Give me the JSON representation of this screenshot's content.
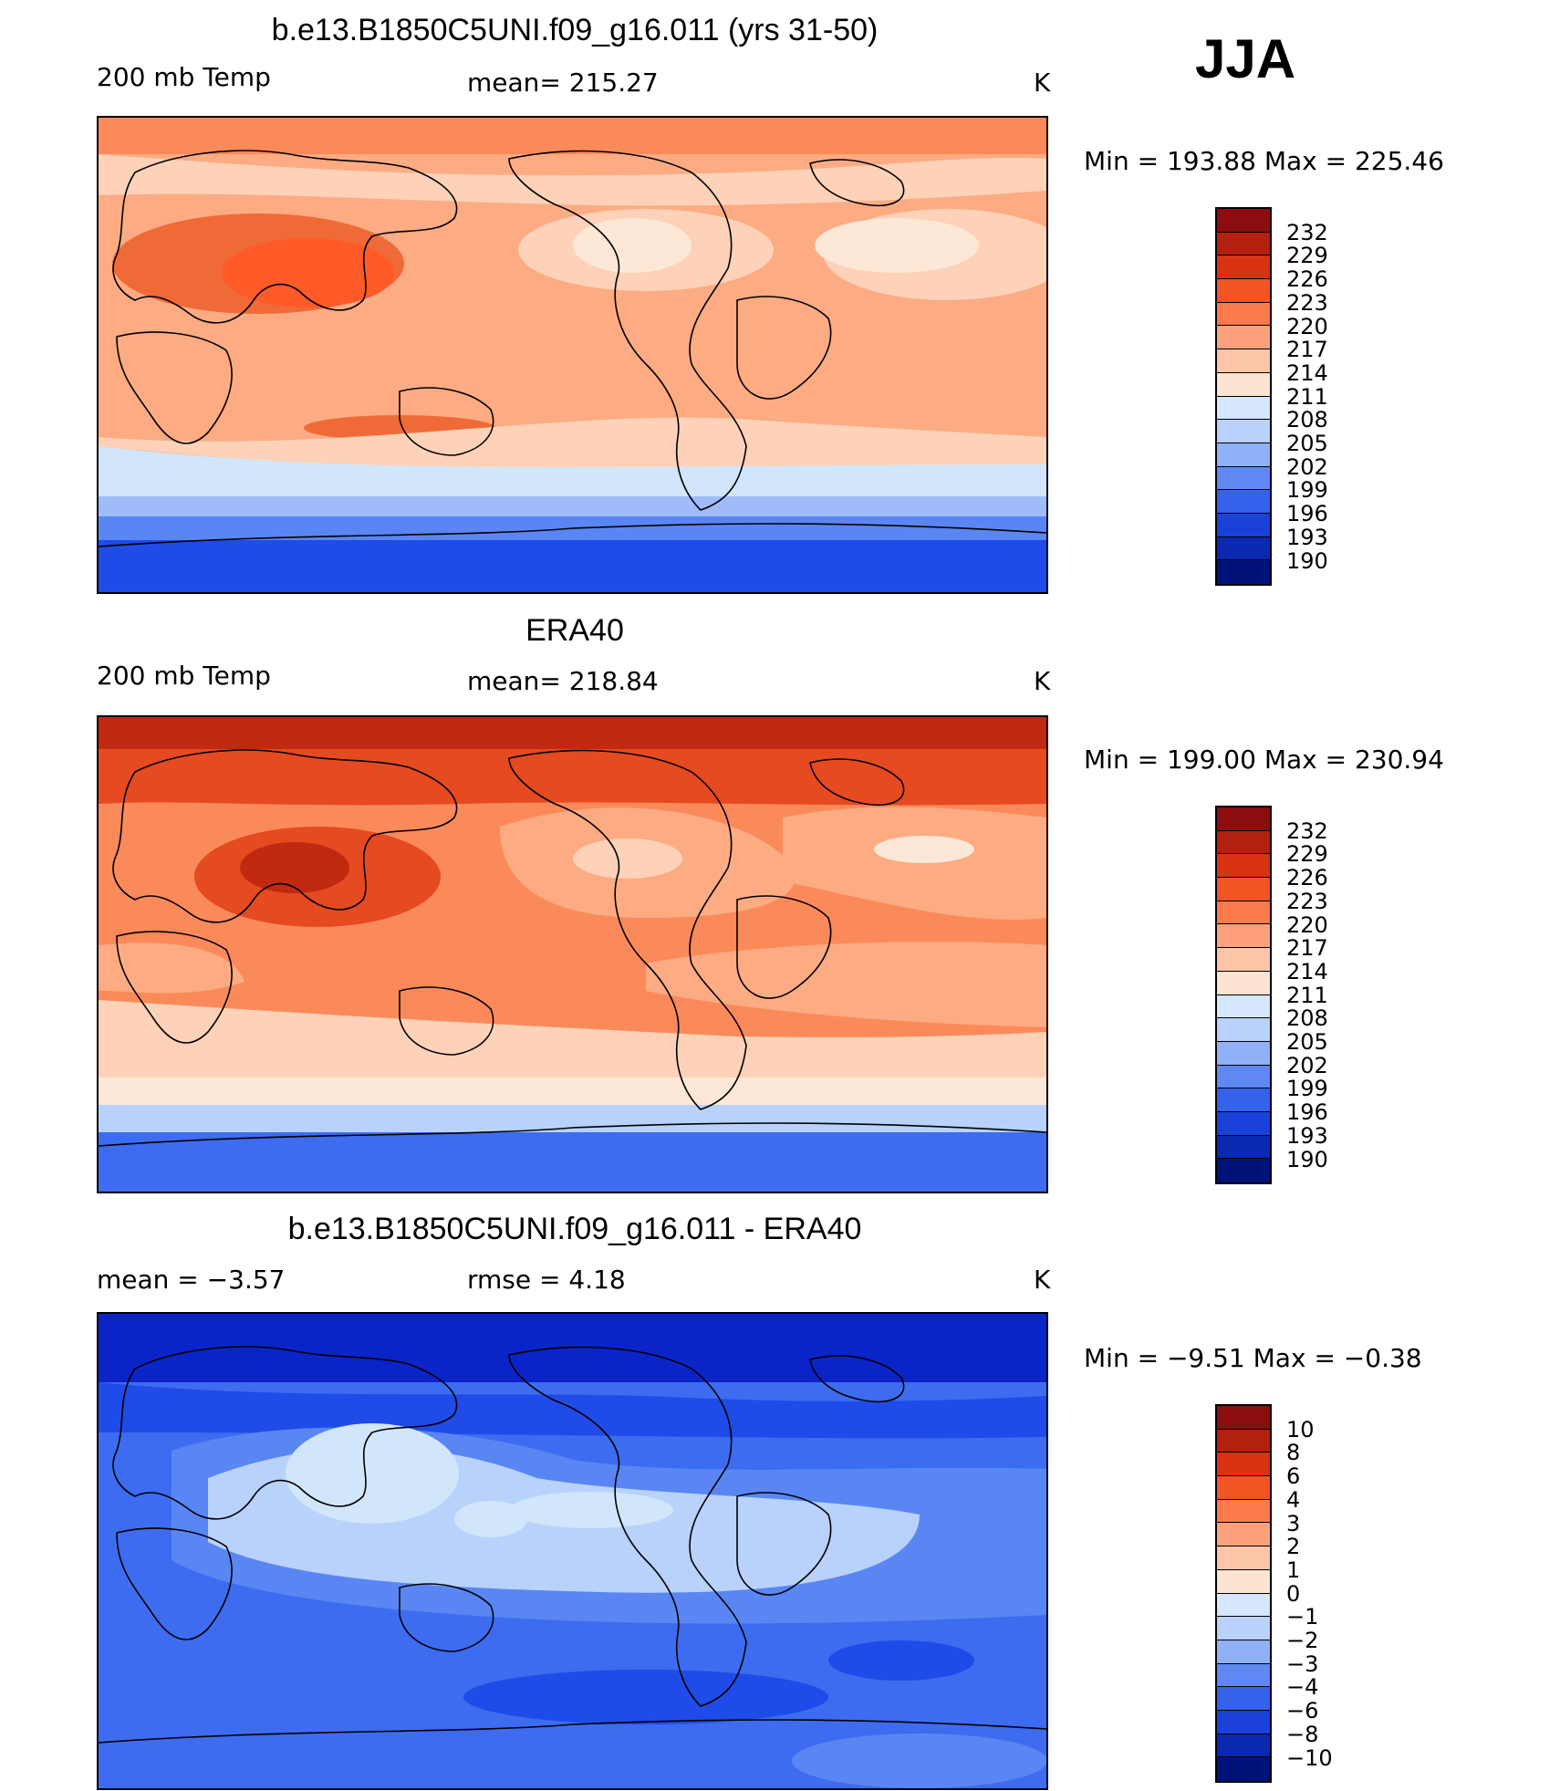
{
  "season": "JJA",
  "panels": [
    {
      "title": "b.e13.B1850C5UNI.f09_g16.011 (yrs 31-50)",
      "left_label": "200 mb Temp",
      "center_label": "mean= 215.27",
      "units": "K",
      "minmax": "Min = 193.88 Max = 225.46",
      "legend": [
        "232",
        "229",
        "226",
        "223",
        "220",
        "217",
        "214",
        "211",
        "208",
        "205",
        "202",
        "199",
        "196",
        "193",
        "190"
      ],
      "field_colors": [
        "#fb8a5a",
        "#fcab83",
        "#fdd2b8",
        "#f06a37",
        "#ff5a28",
        "#fde8d7",
        "#d2e6fb",
        "#9fbcf9",
        "#5a86f3",
        "#1f4be8"
      ]
    },
    {
      "title": "ERA40",
      "left_label": "200 mb Temp",
      "center_label": "mean= 218.84",
      "units": "K",
      "minmax": "Min = 199.00 Max = 230.94",
      "legend": [
        "232",
        "229",
        "226",
        "223",
        "220",
        "217",
        "214",
        "211",
        "208",
        "205",
        "202",
        "199",
        "196",
        "193",
        "190"
      ],
      "field_colors": [
        "#bf2a10",
        "#e54a20",
        "#f06a37",
        "#fb8a5a",
        "#fcab83",
        "#fdd2b8",
        "#fde8d7",
        "#b8d2fb",
        "#5a86f3",
        "#3d6cf0"
      ]
    },
    {
      "title": "b.e13.B1850C5UNI.f09_g16.011 - ERA40",
      "left_label": "mean =   −3.57",
      "center_label": "rmse =    4.18",
      "units": "K",
      "minmax": "Min =   −9.51 Max =   −0.38",
      "legend": [
        "10",
        "8",
        "6",
        "4",
        "3",
        "2",
        "1",
        "0",
        "−1",
        "−2",
        "−3",
        "−4",
        "−6",
        "−8",
        "−10"
      ],
      "field_colors": [
        "#0a24c8",
        "#1f4be8",
        "#3d6cf0",
        "#5a86f3",
        "#9fbcf9",
        "#b8d2fb",
        "#d2e6fb"
      ]
    }
  ],
  "colorbar_colors": [
    "#8b0d0d",
    "#b3200e",
    "#d93312",
    "#f25523",
    "#fb7a4a",
    "#fca17b",
    "#fdc5a8",
    "#fde4d2",
    "#d6e6fb",
    "#b9d1fb",
    "#90b1f8",
    "#5f88f2",
    "#3562ea",
    "#1a42d9",
    "#0a28b0",
    "#00127a"
  ]
}
